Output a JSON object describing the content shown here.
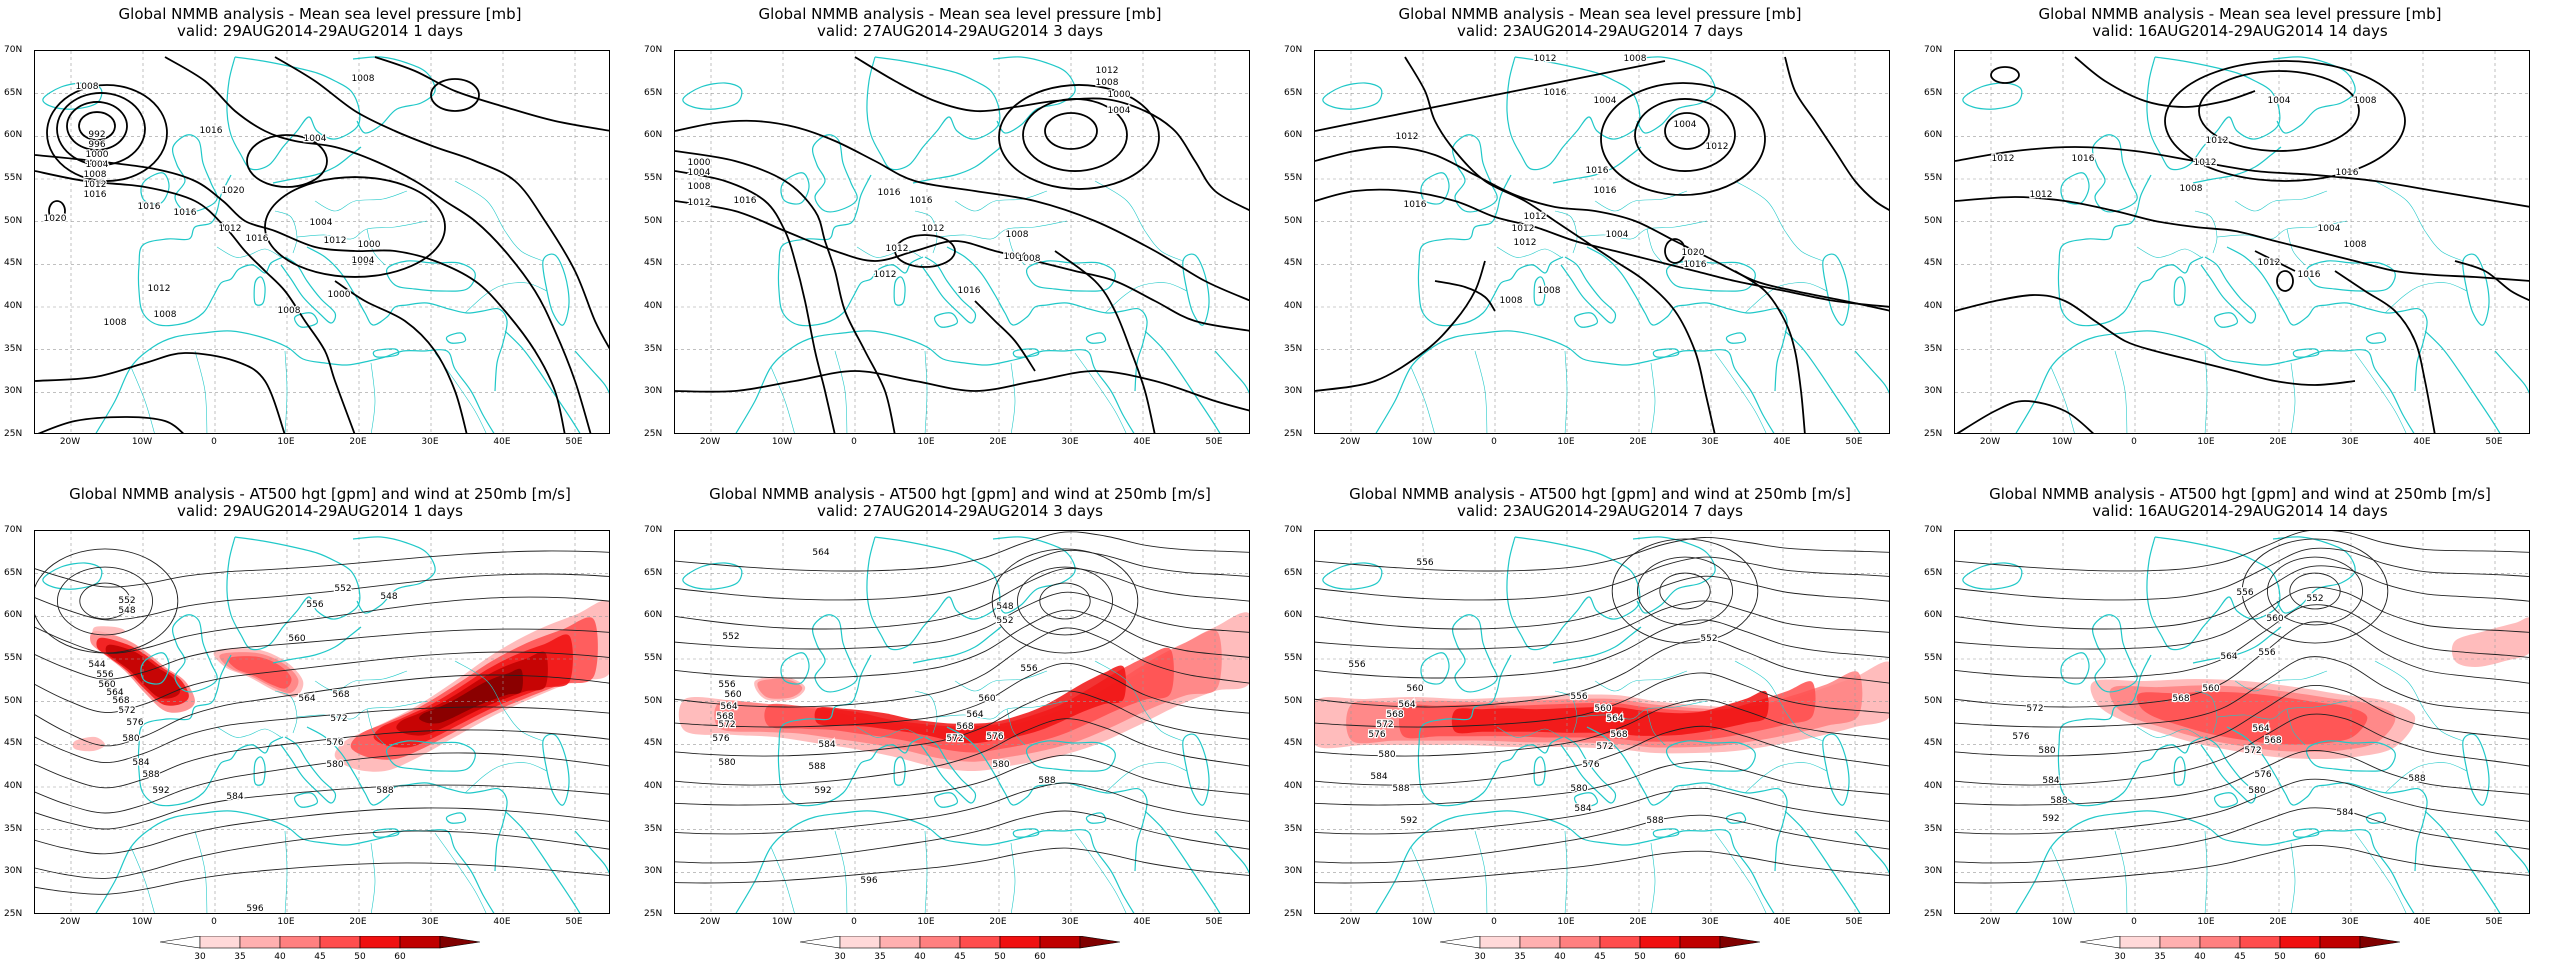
{
  "colors": {
    "coast": "#20c8c8",
    "contour": "#000000",
    "grid": "#9a9a9a",
    "wind_scale": [
      "#ffd9d9",
      "#ffb0b0",
      "#ff8080",
      "#ff4d4d",
      "#f01010",
      "#c00000",
      "#800000"
    ]
  },
  "axes": {
    "lat_labels": [
      "70N",
      "65N",
      "60N",
      "55N",
      "50N",
      "45N",
      "40N",
      "35N",
      "30N",
      "25N"
    ],
    "lon_labels": [
      "20W",
      "10W",
      "0",
      "10E",
      "20E",
      "30E",
      "40E",
      "50E"
    ]
  },
  "colorbar": {
    "ticks": [
      "30",
      "35",
      "40",
      "45",
      "50",
      "60"
    ]
  },
  "panels": [
    {
      "id": "mslp-1",
      "type": "mslp",
      "title": "Global NMMB analysis - Mean sea level pressure [mb]",
      "valid": "valid: 29AUG2014-29AUG2014   1 days",
      "contour_labels": [
        "1008",
        "1016",
        "1004",
        "1008",
        "992",
        "996",
        "1000",
        "1004",
        "1008",
        "1012",
        "1016",
        "1020",
        "1020",
        "1016",
        "1016",
        "1012",
        "1016",
        "1004",
        "1008",
        "1012",
        "1004",
        "1000",
        "1000",
        "1012",
        "1008",
        "1008",
        "1008"
      ]
    },
    {
      "id": "mslp-3",
      "type": "mslp",
      "title": "Global NMMB analysis - Mean sea level pressure [mb]",
      "valid": "valid: 27AUG2014-29AUG2014   3 days",
      "contour_labels": [
        "1012",
        "1008",
        "1000",
        "1004",
        "1000",
        "1004",
        "1008",
        "1012",
        "1016",
        "1016",
        "1016",
        "1012",
        "1012",
        "1008",
        "1004",
        "1008",
        "1012",
        "1016"
      ]
    },
    {
      "id": "mslp-7",
      "type": "mslp",
      "title": "Global NMMB analysis - Mean sea level pressure [mb]",
      "valid": "valid: 23AUG2014-29AUG2014   7 days",
      "contour_labels": [
        "1012",
        "1008",
        "1016",
        "1004",
        "1012",
        "1004",
        "1012",
        "1016",
        "1016",
        "1016",
        "1012",
        "1008",
        "1004",
        "1020",
        "1016",
        "1012",
        "1012",
        "1008"
      ]
    },
    {
      "id": "mslp-14",
      "type": "mslp",
      "title": "Global NMMB analysis - Mean sea level pressure [mb]",
      "valid": "valid: 16AUG2014-29AUG2014   14 days",
      "contour_labels": [
        "1004",
        "1008",
        "1012",
        "1012",
        "1016",
        "1016",
        "1012",
        "1012",
        "1008",
        "1004",
        "1008",
        "1012",
        "1016"
      ]
    },
    {
      "id": "z500-1",
      "type": "z500",
      "title": "Global NMMB analysis - AT500 hgt [gpm] and wind at 250mb [m/s]",
      "valid": "valid: 29AUG2014-29AUG2014   1 days",
      "contour_labels": [
        "552",
        "548",
        "544",
        "556",
        "560",
        "564",
        "568",
        "572",
        "576",
        "580",
        "584",
        "588",
        "592",
        "596",
        "552",
        "548",
        "556",
        "560",
        "564",
        "568",
        "572",
        "576",
        "580",
        "584",
        "588"
      ]
    },
    {
      "id": "z500-3",
      "type": "z500",
      "title": "Global NMMB analysis - AT500 hgt [gpm] and wind at 250mb [m/s]",
      "valid": "valid: 27AUG2014-29AUG2014   3 days",
      "contour_labels": [
        "564",
        "552",
        "556",
        "560",
        "564",
        "568",
        "572",
        "576",
        "580",
        "584",
        "588",
        "592",
        "596",
        "548",
        "552",
        "556",
        "560",
        "564",
        "568",
        "572",
        "576",
        "580",
        "588"
      ]
    },
    {
      "id": "z500-7",
      "type": "z500",
      "title": "Global NMMB analysis - AT500 hgt [gpm] and wind at 250mb [m/s]",
      "valid": "valid: 23AUG2014-29AUG2014   7 days",
      "contour_labels": [
        "556",
        "556",
        "560",
        "564",
        "568",
        "572",
        "576",
        "580",
        "584",
        "588",
        "592",
        "552",
        "556",
        "560",
        "564",
        "568",
        "572",
        "576",
        "580",
        "584",
        "588"
      ]
    },
    {
      "id": "z500-14",
      "type": "z500",
      "title": "Global NMMB analysis - AT500 hgt [gpm] and wind at 250mb [m/s]",
      "valid": "valid: 16AUG2014-29AUG2014   14 days",
      "contour_labels": [
        "556",
        "560",
        "564",
        "568",
        "572",
        "576",
        "580",
        "584",
        "588",
        "592",
        "552",
        "556",
        "560",
        "564",
        "568",
        "572",
        "576",
        "580",
        "584",
        "588"
      ]
    }
  ]
}
